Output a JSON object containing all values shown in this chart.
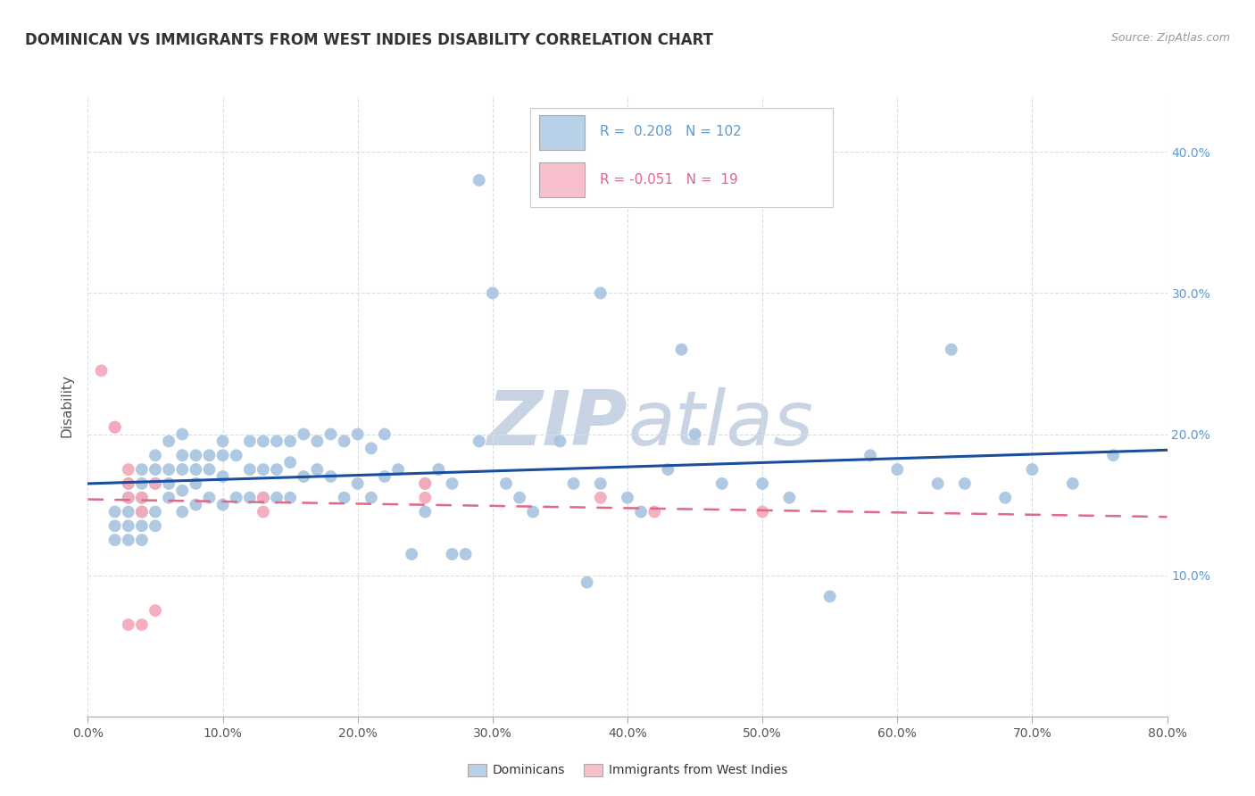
{
  "title": "DOMINICAN VS IMMIGRANTS FROM WEST INDIES DISABILITY CORRELATION CHART",
  "source": "Source: ZipAtlas.com",
  "ylabel": "Disability",
  "x_min": 0.0,
  "x_max": 0.8,
  "y_min": 0.0,
  "y_max": 0.44,
  "x_ticks": [
    0.0,
    0.1,
    0.2,
    0.3,
    0.4,
    0.5,
    0.6,
    0.7,
    0.8
  ],
  "y_ticks": [
    0.0,
    0.1,
    0.2,
    0.3,
    0.4
  ],
  "x_tick_labels": [
    "0.0%",
    "10.0%",
    "20.0%",
    "30.0%",
    "40.0%",
    "50.0%",
    "60.0%",
    "70.0%",
    "80.0%"
  ],
  "y_tick_labels_right": [
    "",
    "10.0%",
    "20.0%",
    "30.0%",
    "40.0%"
  ],
  "dominican_R": 0.208,
  "dominican_N": 102,
  "westindies_R": -0.051,
  "westindies_N": 19,
  "blue_scatter_color": "#a8c4e0",
  "pink_scatter_color": "#f4a8b8",
  "blue_line_color": "#1a4fa0",
  "pink_line_color": "#e06888",
  "legend_blue_fill": "#b8d0e8",
  "legend_pink_fill": "#f8c0cc",
  "background_color": "#ffffff",
  "grid_color": "#d8dde8",
  "watermark_color": "#c8d4e4",
  "label_color": "#5b9bd5",
  "text_color": "#444444",
  "dominican_x": [
    0.02,
    0.02,
    0.02,
    0.03,
    0.03,
    0.03,
    0.03,
    0.03,
    0.04,
    0.04,
    0.04,
    0.04,
    0.04,
    0.04,
    0.05,
    0.05,
    0.05,
    0.05,
    0.05,
    0.06,
    0.06,
    0.06,
    0.06,
    0.07,
    0.07,
    0.07,
    0.07,
    0.07,
    0.08,
    0.08,
    0.08,
    0.08,
    0.09,
    0.09,
    0.09,
    0.1,
    0.1,
    0.1,
    0.1,
    0.11,
    0.11,
    0.12,
    0.12,
    0.12,
    0.13,
    0.13,
    0.13,
    0.14,
    0.14,
    0.14,
    0.15,
    0.15,
    0.15,
    0.16,
    0.16,
    0.17,
    0.17,
    0.18,
    0.18,
    0.19,
    0.19,
    0.2,
    0.2,
    0.21,
    0.21,
    0.22,
    0.22,
    0.23,
    0.24,
    0.25,
    0.25,
    0.26,
    0.27,
    0.27,
    0.28,
    0.29,
    0.3,
    0.31,
    0.32,
    0.33,
    0.35,
    0.36,
    0.37,
    0.38,
    0.4,
    0.41,
    0.43,
    0.44,
    0.45,
    0.47,
    0.5,
    0.52,
    0.55,
    0.58,
    0.6,
    0.63,
    0.65,
    0.68,
    0.7,
    0.73,
    0.76,
    0.29,
    0.38,
    0.64
  ],
  "dominican_y": [
    0.145,
    0.135,
    0.125,
    0.165,
    0.155,
    0.145,
    0.135,
    0.125,
    0.175,
    0.165,
    0.155,
    0.145,
    0.135,
    0.125,
    0.185,
    0.175,
    0.165,
    0.145,
    0.135,
    0.195,
    0.175,
    0.165,
    0.155,
    0.2,
    0.185,
    0.175,
    0.16,
    0.145,
    0.185,
    0.175,
    0.165,
    0.15,
    0.185,
    0.175,
    0.155,
    0.195,
    0.185,
    0.17,
    0.15,
    0.185,
    0.155,
    0.195,
    0.175,
    0.155,
    0.195,
    0.175,
    0.155,
    0.195,
    0.175,
    0.155,
    0.195,
    0.18,
    0.155,
    0.2,
    0.17,
    0.195,
    0.175,
    0.2,
    0.17,
    0.195,
    0.155,
    0.2,
    0.165,
    0.19,
    0.155,
    0.2,
    0.17,
    0.175,
    0.115,
    0.165,
    0.145,
    0.175,
    0.165,
    0.115,
    0.115,
    0.195,
    0.3,
    0.165,
    0.155,
    0.145,
    0.195,
    0.165,
    0.095,
    0.165,
    0.155,
    0.145,
    0.175,
    0.26,
    0.2,
    0.165,
    0.165,
    0.155,
    0.085,
    0.185,
    0.175,
    0.165,
    0.165,
    0.155,
    0.175,
    0.165,
    0.185,
    0.38,
    0.3,
    0.26
  ],
  "westindies_x": [
    0.01,
    0.02,
    0.02,
    0.03,
    0.03,
    0.03,
    0.03,
    0.04,
    0.04,
    0.04,
    0.05,
    0.05,
    0.13,
    0.13,
    0.25,
    0.25,
    0.38,
    0.42,
    0.5
  ],
  "westindies_y": [
    0.245,
    0.205,
    0.205,
    0.175,
    0.165,
    0.155,
    0.065,
    0.155,
    0.145,
    0.065,
    0.165,
    0.075,
    0.155,
    0.145,
    0.165,
    0.155,
    0.155,
    0.145,
    0.145
  ]
}
